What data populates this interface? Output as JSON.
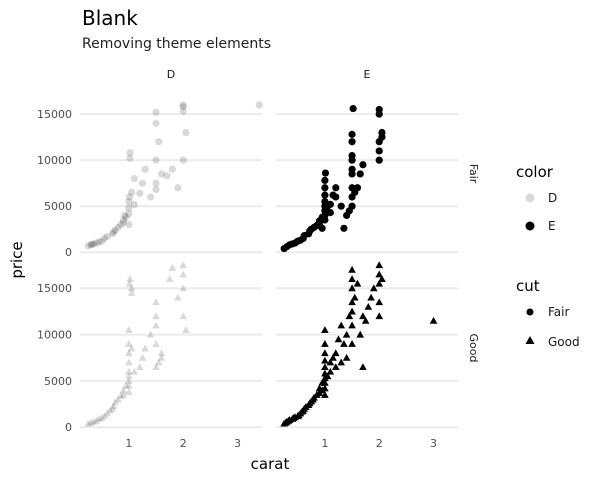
{
  "chart_data": {
    "type": "scatter",
    "title": "Blank",
    "subtitle": "Removing theme elements",
    "xlabel": "carat",
    "ylabel": "price",
    "xlim": [
      0.1,
      3.45
    ],
    "ylim": [
      -300,
      17400
    ],
    "x_ticks": [
      1,
      2,
      3
    ],
    "y_ticks": [
      0,
      5000,
      10000,
      15000
    ],
    "grid": "horizontal major only",
    "facet_cols": [
      "D",
      "E"
    ],
    "facet_rows": [
      "Fair",
      "Good"
    ],
    "legend_placement": "right",
    "legends": {
      "color": {
        "title": "color",
        "entries": [
          "D",
          "E"
        ],
        "opacity": {
          "D": 0.15,
          "E": 1.0
        }
      },
      "cut": {
        "title": "cut",
        "entries": [
          "Fair",
          "Good"
        ],
        "shapes": {
          "Fair": "circle",
          "Good": "triangle"
        }
      }
    },
    "series": [
      {
        "color": "D",
        "cut": "Fair",
        "points": [
          [
            0.25,
            700
          ],
          [
            0.3,
            800
          ],
          [
            0.32,
            850
          ],
          [
            0.35,
            900
          ],
          [
            0.4,
            1000
          ],
          [
            0.45,
            1100
          ],
          [
            0.5,
            1200
          ],
          [
            0.55,
            1500
          ],
          [
            0.6,
            1700
          ],
          [
            0.7,
            2000
          ],
          [
            0.72,
            2200
          ],
          [
            0.75,
            2400
          ],
          [
            0.8,
            2700
          ],
          [
            0.85,
            3000
          ],
          [
            0.9,
            3500
          ],
          [
            0.9,
            3200
          ],
          [
            0.92,
            4000
          ],
          [
            0.95,
            3800
          ],
          [
            1.0,
            4200
          ],
          [
            1.0,
            4800
          ],
          [
            1.0,
            5500
          ],
          [
            1.0,
            3000
          ],
          [
            1.01,
            6000
          ],
          [
            1.02,
            10800
          ],
          [
            1.02,
            10200
          ],
          [
            1.05,
            6500
          ],
          [
            1.1,
            5200
          ],
          [
            1.1,
            8000
          ],
          [
            1.2,
            6400
          ],
          [
            1.25,
            7500
          ],
          [
            1.3,
            9000
          ],
          [
            1.4,
            6000
          ],
          [
            1.5,
            6800
          ],
          [
            1.5,
            7500
          ],
          [
            1.5,
            10000
          ],
          [
            1.5,
            15200
          ],
          [
            1.5,
            14000
          ],
          [
            1.55,
            12000
          ],
          [
            1.6,
            8500
          ],
          [
            1.7,
            8300
          ],
          [
            1.8,
            9000
          ],
          [
            1.9,
            7000
          ],
          [
            2.0,
            15300
          ],
          [
            2.0,
            16000
          ],
          [
            2.0,
            15800
          ],
          [
            2.0,
            10000
          ],
          [
            2.05,
            13000
          ],
          [
            3.4,
            16000
          ]
        ]
      },
      {
        "color": "E",
        "cut": "Fair",
        "points": [
          [
            0.25,
            400
          ],
          [
            0.3,
            600
          ],
          [
            0.35,
            800
          ],
          [
            0.4,
            900
          ],
          [
            0.45,
            1000
          ],
          [
            0.5,
            1200
          ],
          [
            0.55,
            1300
          ],
          [
            0.6,
            1500
          ],
          [
            0.62,
            1800
          ],
          [
            0.7,
            2000
          ],
          [
            0.72,
            2300
          ],
          [
            0.75,
            2500
          ],
          [
            0.8,
            2700
          ],
          [
            0.85,
            2900
          ],
          [
            0.9,
            3000
          ],
          [
            0.9,
            3400
          ],
          [
            0.95,
            3800
          ],
          [
            0.95,
            2600
          ],
          [
            1.0,
            3500
          ],
          [
            1.0,
            4000
          ],
          [
            1.0,
            4500
          ],
          [
            1.0,
            5000
          ],
          [
            1.0,
            5500
          ],
          [
            1.0,
            6200
          ],
          [
            1.0,
            7000
          ],
          [
            1.0,
            7800
          ],
          [
            1.01,
            8600
          ],
          [
            1.05,
            5000
          ],
          [
            1.1,
            4300
          ],
          [
            1.1,
            5200
          ],
          [
            1.15,
            6200
          ],
          [
            1.2,
            6000
          ],
          [
            1.2,
            7000
          ],
          [
            1.3,
            5000
          ],
          [
            1.35,
            2600
          ],
          [
            1.4,
            4000
          ],
          [
            1.45,
            4500
          ],
          [
            1.5,
            5000
          ],
          [
            1.5,
            6000
          ],
          [
            1.5,
            7000
          ],
          [
            1.5,
            8500
          ],
          [
            1.5,
            9000
          ],
          [
            1.5,
            10000
          ],
          [
            1.5,
            10500
          ],
          [
            1.5,
            12000
          ],
          [
            1.5,
            12800
          ],
          [
            1.52,
            15600
          ],
          [
            1.55,
            6500
          ],
          [
            1.6,
            7000
          ],
          [
            1.65,
            8500
          ],
          [
            1.7,
            9500
          ],
          [
            2.0,
            15500
          ],
          [
            2.0,
            15000
          ],
          [
            2.0,
            12000
          ],
          [
            2.0,
            11000
          ],
          [
            2.0,
            10000
          ],
          [
            2.05,
            12500
          ],
          [
            2.05,
            13000
          ]
        ]
      },
      {
        "color": "D",
        "cut": "Good",
        "points": [
          [
            0.25,
            400
          ],
          [
            0.3,
            500
          ],
          [
            0.35,
            600
          ],
          [
            0.4,
            700
          ],
          [
            0.45,
            900
          ],
          [
            0.5,
            1000
          ],
          [
            0.55,
            1200
          ],
          [
            0.6,
            1500
          ],
          [
            0.65,
            1800
          ],
          [
            0.7,
            2000
          ],
          [
            0.72,
            2300
          ],
          [
            0.75,
            2700
          ],
          [
            0.8,
            3000
          ],
          [
            0.85,
            3400
          ],
          [
            0.9,
            3500
          ],
          [
            0.9,
            4000
          ],
          [
            0.95,
            4500
          ],
          [
            1.0,
            3800
          ],
          [
            1.0,
            4500
          ],
          [
            1.0,
            5000
          ],
          [
            1.0,
            5500
          ],
          [
            1.0,
            6000
          ],
          [
            1.0,
            7000
          ],
          [
            1.0,
            8000
          ],
          [
            1.0,
            9000
          ],
          [
            1.0,
            10500
          ],
          [
            1.01,
            15500
          ],
          [
            1.02,
            16000
          ],
          [
            1.05,
            14500
          ],
          [
            1.05,
            15000
          ],
          [
            1.05,
            8500
          ],
          [
            1.1,
            6000
          ],
          [
            1.2,
            6500
          ],
          [
            1.25,
            7500
          ],
          [
            1.3,
            8500
          ],
          [
            1.4,
            10000
          ],
          [
            1.5,
            11000
          ],
          [
            1.5,
            12000
          ],
          [
            1.5,
            13500
          ],
          [
            1.5,
            9000
          ],
          [
            1.5,
            6500
          ],
          [
            1.55,
            7000
          ],
          [
            1.6,
            8000
          ],
          [
            1.6,
            7500
          ],
          [
            1.75,
            16000
          ],
          [
            1.8,
            17200
          ],
          [
            1.9,
            14000
          ],
          [
            2.0,
            12000
          ],
          [
            2.0,
            15000
          ],
          [
            2.0,
            16500
          ],
          [
            2.0,
            17500
          ],
          [
            2.05,
            10500
          ]
        ]
      },
      {
        "color": "E",
        "cut": "Good",
        "points": [
          [
            0.25,
            400
          ],
          [
            0.28,
            500
          ],
          [
            0.3,
            600
          ],
          [
            0.33,
            700
          ],
          [
            0.35,
            800
          ],
          [
            0.4,
            900
          ],
          [
            0.42,
            1000
          ],
          [
            0.45,
            1100
          ],
          [
            0.5,
            1200
          ],
          [
            0.52,
            1300
          ],
          [
            0.55,
            1500
          ],
          [
            0.58,
            1700
          ],
          [
            0.6,
            1800
          ],
          [
            0.62,
            2000
          ],
          [
            0.65,
            2200
          ],
          [
            0.7,
            2400
          ],
          [
            0.72,
            2600
          ],
          [
            0.75,
            2800
          ],
          [
            0.78,
            3000
          ],
          [
            0.8,
            3200
          ],
          [
            0.85,
            3500
          ],
          [
            0.9,
            3700
          ],
          [
            0.9,
            4200
          ],
          [
            0.95,
            4000
          ],
          [
            0.95,
            4800
          ],
          [
            1.0,
            3500
          ],
          [
            1.0,
            4200
          ],
          [
            1.0,
            4800
          ],
          [
            1.0,
            5300
          ],
          [
            1.0,
            5800
          ],
          [
            1.0,
            6500
          ],
          [
            1.0,
            7200
          ],
          [
            1.0,
            8000
          ],
          [
            1.0,
            9000
          ],
          [
            1.0,
            10500
          ],
          [
            1.05,
            5500
          ],
          [
            1.1,
            6000
          ],
          [
            1.1,
            7000
          ],
          [
            1.15,
            7500
          ],
          [
            1.2,
            6500
          ],
          [
            1.2,
            8000
          ],
          [
            1.25,
            9500
          ],
          [
            1.3,
            7000
          ],
          [
            1.3,
            11000
          ],
          [
            1.35,
            9000
          ],
          [
            1.4,
            10000
          ],
          [
            1.4,
            7500
          ],
          [
            1.45,
            12000
          ],
          [
            1.5,
            11000
          ],
          [
            1.5,
            12500
          ],
          [
            1.5,
            13500
          ],
          [
            1.5,
            15000
          ],
          [
            1.5,
            16000
          ],
          [
            1.5,
            17000
          ],
          [
            1.5,
            9000
          ],
          [
            1.55,
            14000
          ],
          [
            1.6,
            15500
          ],
          [
            1.65,
            10000
          ],
          [
            1.7,
            12000
          ],
          [
            1.7,
            6500
          ],
          [
            1.75,
            11500
          ],
          [
            1.8,
            13000
          ],
          [
            1.85,
            14000
          ],
          [
            1.9,
            15000
          ],
          [
            2.0,
            12000
          ],
          [
            2.0,
            13500
          ],
          [
            2.0,
            15500
          ],
          [
            2.0,
            16500
          ],
          [
            2.0,
            17500
          ],
          [
            2.05,
            16000
          ],
          [
            3.0,
            11500
          ]
        ]
      }
    ]
  }
}
